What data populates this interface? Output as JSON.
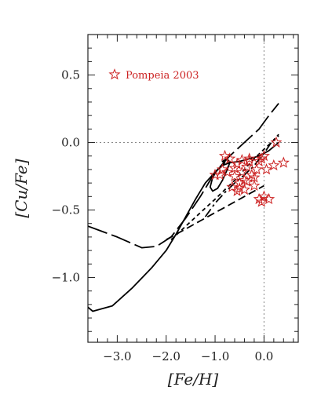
{
  "chart_data": {
    "type": "line",
    "xlabel": "[Fe/H]",
    "ylabel": "[Cu/Fe]",
    "xlim": [
      -3.6,
      0.7
    ],
    "ylim": [
      -1.48,
      0.8
    ],
    "x_ticks": [
      -3.0,
      -2.0,
      -1.0,
      0.0
    ],
    "x_tick_labels": [
      "−3.0",
      "−2.0",
      "−1.0",
      "0.0"
    ],
    "y_ticks": [
      0.5,
      0.0,
      -0.5,
      -1.0
    ],
    "y_tick_labels": [
      "0.5",
      "0.0",
      "−0.5",
      "−1.0"
    ],
    "reference_lines": {
      "x": 0.0,
      "y": 0.0
    },
    "legend": {
      "entries": [
        "Pompeia 2003"
      ],
      "placement": "top-left"
    },
    "colors": {
      "models": "#000000",
      "observations": "#cc2222",
      "reference": "#888888"
    },
    "series": [
      {
        "style": "solid",
        "x": [
          -3.6,
          -3.5,
          -3.1,
          -2.7,
          -2.3,
          -2.0,
          -1.8,
          -1.6,
          -1.4,
          -1.2,
          -1.0,
          -0.85,
          -0.7,
          -0.5,
          -0.3,
          -0.1,
          0.1,
          0.3
        ],
        "y": [
          -1.22,
          -1.25,
          -1.21,
          -1.08,
          -0.93,
          -0.8,
          -0.68,
          -0.55,
          -0.42,
          -0.3,
          -0.22,
          -0.17,
          -0.15,
          -0.14,
          -0.12,
          -0.1,
          -0.06,
          0.0
        ]
      },
      {
        "style": "long-dash",
        "x": [
          -3.6,
          -3.0,
          -2.5,
          -2.2,
          -1.9,
          -1.6,
          -1.3,
          -1.0,
          -0.7,
          -0.4,
          -0.1,
          0.1,
          0.3
        ],
        "y": [
          -0.62,
          -0.7,
          -0.78,
          -0.77,
          -0.7,
          -0.56,
          -0.4,
          -0.22,
          -0.1,
          0.0,
          0.1,
          0.2,
          0.29
        ]
      },
      {
        "style": "dash",
        "x": [
          -2.0,
          -1.8,
          -1.6,
          -1.4,
          -1.2,
          -1.0,
          -0.8,
          -0.6,
          -0.4,
          -0.2,
          0.0
        ],
        "y": [
          -0.72,
          -0.68,
          -0.64,
          -0.6,
          -0.56,
          -0.52,
          -0.48,
          -0.44,
          -0.4,
          -0.36,
          -0.32
        ]
      },
      {
        "style": "short-dash",
        "x": [
          -1.9,
          -1.6,
          -1.3,
          -1.0,
          -0.8,
          -0.6,
          -0.4,
          -0.2,
          0.0,
          0.15,
          0.3
        ],
        "y": [
          -0.72,
          -0.62,
          -0.52,
          -0.42,
          -0.35,
          -0.28,
          -0.2,
          -0.12,
          -0.05,
          0.0,
          0.05
        ]
      },
      {
        "style": "dash-dot",
        "x": [
          -1.2,
          -1.0,
          -0.8,
          -0.6,
          -0.4,
          -0.2,
          0.0,
          0.15,
          0.3
        ],
        "y": [
          -0.55,
          -0.45,
          -0.37,
          -0.3,
          -0.24,
          -0.17,
          -0.08,
          0.0,
          0.06
        ]
      },
      {
        "style": "solid-loop",
        "x": [
          -0.8,
          -0.95,
          -1.05,
          -1.1,
          -1.05,
          -0.95,
          -0.85,
          -0.75,
          -0.7,
          -0.75,
          -0.85
        ],
        "y": [
          -0.15,
          -0.2,
          -0.26,
          -0.33,
          -0.36,
          -0.34,
          -0.28,
          -0.2,
          -0.15,
          -0.12,
          -0.14
        ]
      }
    ],
    "scatter": {
      "name": "Pompeia 2003",
      "marker": "open-star",
      "x": [
        0.25,
        0.4,
        0.1,
        0.2,
        0.05,
        -0.05,
        0.0,
        -0.1,
        -0.2,
        -0.25,
        -0.3,
        -0.35,
        -0.4,
        -0.45,
        -0.5,
        -0.55,
        -0.6,
        -0.65,
        -0.7,
        -0.75,
        -0.8,
        -0.85,
        -0.9,
        -1.0,
        -0.4,
        -0.3,
        -0.5,
        -0.6,
        0.0,
        -0.05,
        -0.1,
        -0.15,
        -0.2,
        -0.35,
        -0.45,
        -0.55
      ],
      "y": [
        0.0,
        -0.15,
        -0.42,
        -0.17,
        -0.2,
        -0.12,
        -0.1,
        -0.42,
        -0.32,
        -0.24,
        -0.14,
        -0.18,
        -0.35,
        -0.22,
        -0.3,
        -0.16,
        -0.25,
        -0.33,
        -0.12,
        -0.22,
        -0.1,
        -0.2,
        -0.24,
        -0.24,
        -0.28,
        -0.12,
        -0.34,
        -0.19,
        -0.4,
        -0.44,
        -0.14,
        -0.2,
        -0.26,
        -0.29,
        -0.13,
        -0.36
      ]
    }
  }
}
